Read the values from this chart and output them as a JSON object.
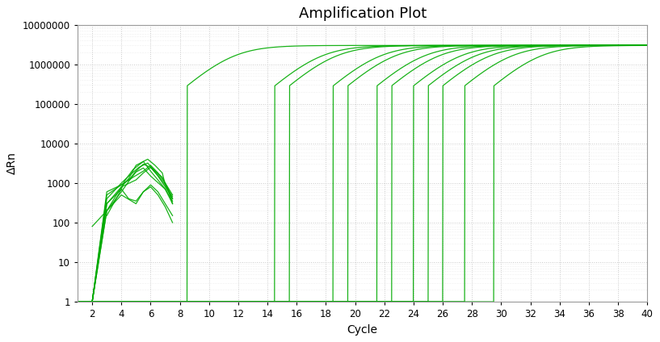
{
  "title": "Amplification Plot",
  "xlabel": "Cycle",
  "ylabel": "ΔRn",
  "xlim": [
    1,
    40
  ],
  "ylim_log": [
    1,
    10000000
  ],
  "x_ticks": [
    2,
    4,
    6,
    8,
    10,
    12,
    14,
    16,
    18,
    20,
    22,
    24,
    26,
    28,
    30,
    32,
    34,
    36,
    38,
    40
  ],
  "y_ticks": [
    1,
    10,
    100,
    1000,
    10000,
    100000,
    1000000,
    10000000
  ],
  "line_color": "#00aa00",
  "background_color": "#ffffff",
  "grid_color": "#cccccc",
  "title_fontsize": 13,
  "axis_label_fontsize": 10,
  "tick_fontsize": 8.5,
  "plateau": 3000000,
  "noise_curves": [
    {
      "x": [
        1,
        2,
        3,
        4,
        4.5,
        5,
        5.5,
        6,
        6.5,
        7,
        7.5
      ],
      "y": [
        1,
        1,
        500,
        900,
        1200,
        2000,
        3000,
        2500,
        1500,
        800,
        400
      ]
    },
    {
      "x": [
        1,
        2,
        3,
        4,
        4.2,
        4.8,
        5.5,
        6,
        6.5,
        7,
        7.5
      ],
      "y": [
        1,
        1,
        300,
        700,
        1100,
        2200,
        3500,
        2000,
        1200,
        700,
        350
      ]
    },
    {
      "x": [
        1,
        2,
        3,
        4,
        4.5,
        5,
        5.8,
        6.3,
        6.8,
        7,
        7.5
      ],
      "y": [
        1,
        1,
        200,
        800,
        1300,
        2800,
        4000,
        2800,
        1800,
        900,
        450
      ]
    },
    {
      "x": [
        1,
        2,
        3,
        4,
        4.5,
        5.2,
        5.8,
        6.2,
        6.8,
        7.2,
        7.5
      ],
      "y": [
        1,
        1,
        400,
        1000,
        1500,
        2500,
        3200,
        2200,
        1400,
        700,
        300
      ]
    },
    {
      "x": [
        1,
        2,
        3,
        4,
        4.8,
        5.5,
        6,
        6.5,
        7,
        7.5
      ],
      "y": [
        1,
        1,
        600,
        900,
        1400,
        2000,
        2800,
        1800,
        1000,
        500
      ]
    },
    {
      "x": [
        1,
        2,
        3,
        4,
        5,
        5.5,
        6,
        6.5,
        7,
        7.5
      ],
      "y": [
        1,
        1,
        300,
        800,
        1200,
        1800,
        2500,
        1600,
        900,
        400
      ]
    },
    {
      "x": [
        1,
        2,
        3,
        4,
        4.5,
        5,
        5.5,
        6,
        7,
        7.5
      ],
      "y": [
        1,
        1,
        200,
        600,
        1100,
        1900,
        2400,
        1500,
        700,
        300
      ]
    },
    {
      "x": [
        2,
        3,
        4,
        5,
        5.5,
        6,
        6.5,
        7,
        7.5
      ],
      "y": [
        80,
        200,
        500,
        300,
        600,
        800,
        500,
        250,
        100
      ]
    },
    {
      "x": [
        3,
        4,
        4.5,
        5,
        5.5,
        6,
        6.5,
        7,
        7.5
      ],
      "y": [
        150,
        700,
        400,
        350,
        600,
        900,
        600,
        300,
        150
      ]
    }
  ],
  "amp_curves": [
    {
      "ct": 11.5,
      "rise_start": 10.5
    },
    {
      "ct": 17.5,
      "rise_start": 16.5
    },
    {
      "ct": 18.5,
      "rise_start": 17.5
    },
    {
      "ct": 21.5,
      "rise_start": 20.0
    },
    {
      "ct": 22.5,
      "rise_start": 21.0
    },
    {
      "ct": 24.5,
      "rise_start": 23.0
    },
    {
      "ct": 25.5,
      "rise_start": 24.0
    },
    {
      "ct": 27.0,
      "rise_start": 25.5
    },
    {
      "ct": 28.0,
      "rise_start": 26.5
    },
    {
      "ct": 29.0,
      "rise_start": 27.5
    },
    {
      "ct": 30.5,
      "rise_start": 29.0
    },
    {
      "ct": 32.5,
      "rise_start": 31.0
    }
  ]
}
